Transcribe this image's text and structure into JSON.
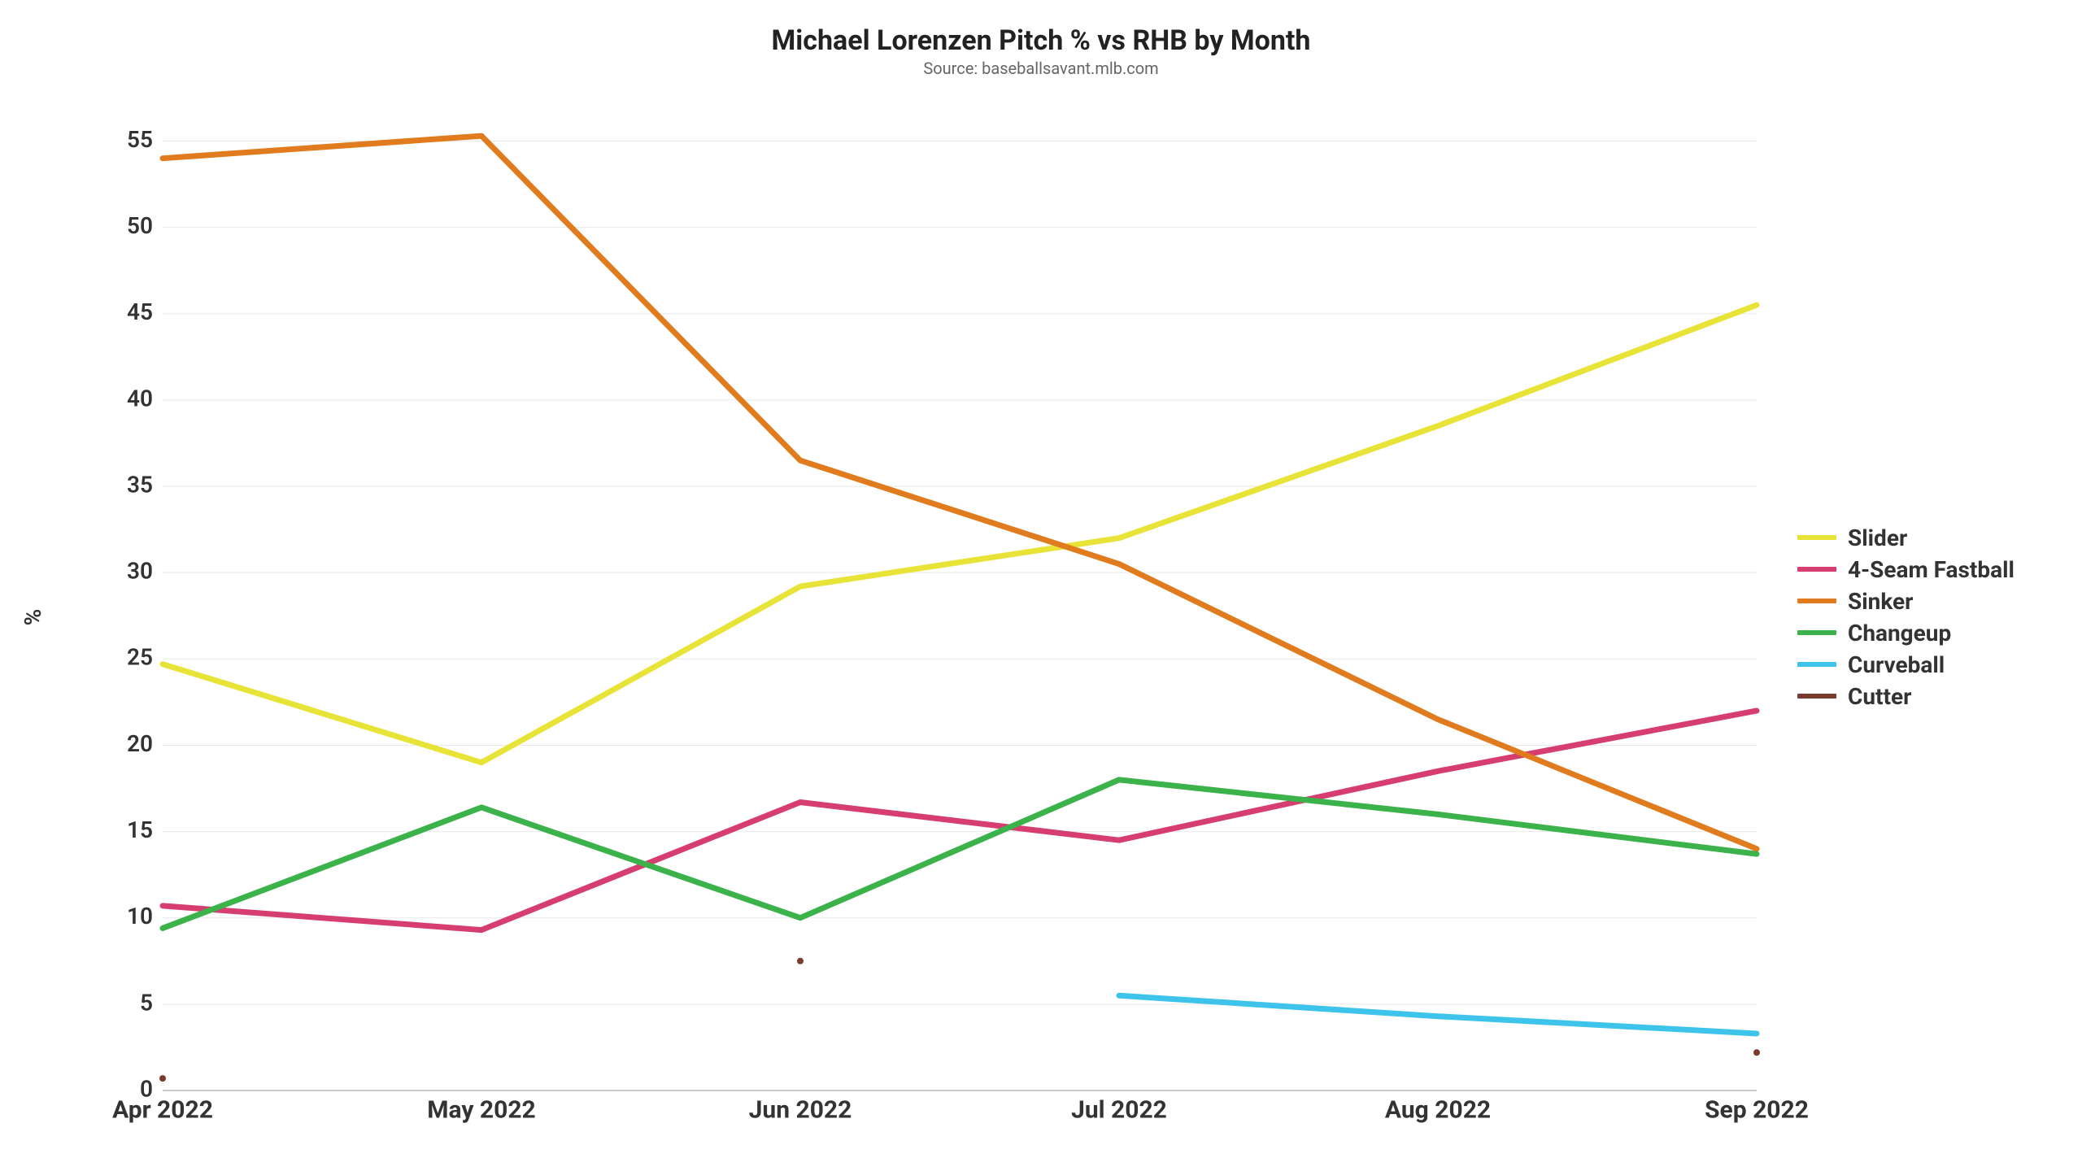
{
  "chart": {
    "type": "line",
    "title": "Michael Lorenzen Pitch % vs RHB by Month",
    "title_fontsize": 34,
    "subtitle": "Source: baseballsavant.mlb.com",
    "subtitle_fontsize": 20,
    "subtitle_color": "#666666",
    "ylabel": "%",
    "ylabel_fontsize": 28,
    "background_color": "#ffffff",
    "grid_color": "#e9e9e9",
    "axis_color": "#cccccc",
    "tick_font_color": "#333333",
    "line_width": 7,
    "point_radius": 4,
    "x": {
      "categories": [
        "Apr 2022",
        "May 2022",
        "Jun 2022",
        "Jul 2022",
        "Aug 2022",
        "Sep 2022"
      ],
      "label_fontsize": 30
    },
    "y": {
      "min": 0,
      "max": 57,
      "ticks": [
        0,
        5,
        10,
        15,
        20,
        25,
        30,
        35,
        40,
        45,
        50,
        55
      ],
      "label_fontsize": 28
    },
    "series": [
      {
        "name": "Slider",
        "color": "#e8e337",
        "values": [
          24.7,
          19.0,
          29.2,
          32.0,
          38.5,
          45.5
        ]
      },
      {
        "name": "4-Seam Fastball",
        "color": "#d53e6f",
        "values": [
          10.7,
          9.3,
          16.7,
          14.5,
          18.5,
          22.0
        ]
      },
      {
        "name": "Sinker",
        "color": "#e07b1e",
        "values": [
          54.0,
          55.3,
          36.5,
          30.5,
          21.5,
          14.0
        ]
      },
      {
        "name": "Changeup",
        "color": "#3bb24a",
        "values": [
          9.4,
          16.4,
          10.0,
          18.0,
          16.0,
          13.7
        ]
      },
      {
        "name": "Curveball",
        "color": "#3ec4ea",
        "values": [
          null,
          null,
          null,
          5.5,
          4.3,
          3.3
        ]
      },
      {
        "name": "Cutter",
        "color": "#7a3b2e",
        "values": [
          0.7,
          null,
          7.5,
          null,
          null,
          2.2
        ],
        "points_only": true
      }
    ],
    "legend": {
      "position": "right",
      "fontsize": 28,
      "swatch_width": 48,
      "swatch_height": 6
    }
  }
}
